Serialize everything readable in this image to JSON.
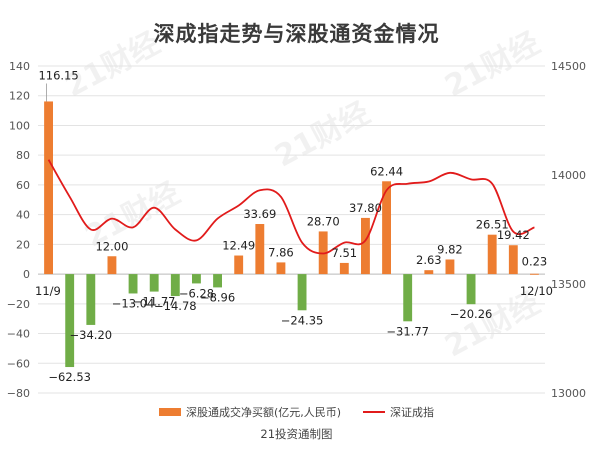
{
  "title": "深成指走势与深股通资金情况",
  "watermark": "21财经",
  "source": "21投资通制图",
  "colors": {
    "positive_bar": "#ed7d31",
    "negative_bar": "#70ad47",
    "index_line": "#e11b1b",
    "grid": "#e3e3e3",
    "axis_text": "#555555"
  },
  "chart_data": {
    "type": "bar",
    "title": "深成指走势与深股通资金情况",
    "date_labels": {
      "start": "11/9",
      "end": "12/10"
    },
    "y_left": {
      "min": -80,
      "max": 140,
      "step": 20,
      "ticks": [
        "140",
        "120",
        "100",
        "80",
        "60",
        "40",
        "20",
        "0",
        "−20",
        "−40",
        "−60",
        "−80"
      ]
    },
    "y_right": {
      "min": 13000,
      "max": 14500,
      "step": 500,
      "ticks": [
        "14500",
        "14000",
        "13500",
        "13000"
      ]
    },
    "series": [
      {
        "name": "深股通成交净买额(亿元,人民币)",
        "type": "bar",
        "values": [
          116.15,
          -62.53,
          -34.2,
          12.0,
          -13.04,
          -11.77,
          -14.78,
          -6.28,
          -8.96,
          12.49,
          33.69,
          7.86,
          -24.35,
          28.7,
          7.51,
          37.8,
          62.44,
          -31.77,
          2.63,
          9.82,
          -20.26,
          26.51,
          19.42,
          0.23
        ],
        "labels": [
          "116.15",
          "−62.53",
          "−34.20",
          "12.00",
          "−13.04",
          "−11.77",
          "−14.78",
          "−6.28",
          "−8.96",
          "12.49",
          "33.69",
          "7.86",
          "−24.35",
          "28.70",
          "7.51",
          "37.80",
          "62.44",
          "−31.77",
          "2.63",
          "9.82",
          "−20.26",
          "26.51",
          "19.42",
          "0.23"
        ]
      },
      {
        "name": "深证成指",
        "type": "line",
        "axis": "right",
        "values": [
          14070,
          13900,
          13750,
          13800,
          13760,
          13850,
          13750,
          13700,
          13800,
          13860,
          13930,
          13900,
          13690,
          13640,
          13690,
          13700,
          13930,
          13960,
          13970,
          14010,
          13980,
          13960,
          13740,
          13760
        ]
      }
    ]
  }
}
